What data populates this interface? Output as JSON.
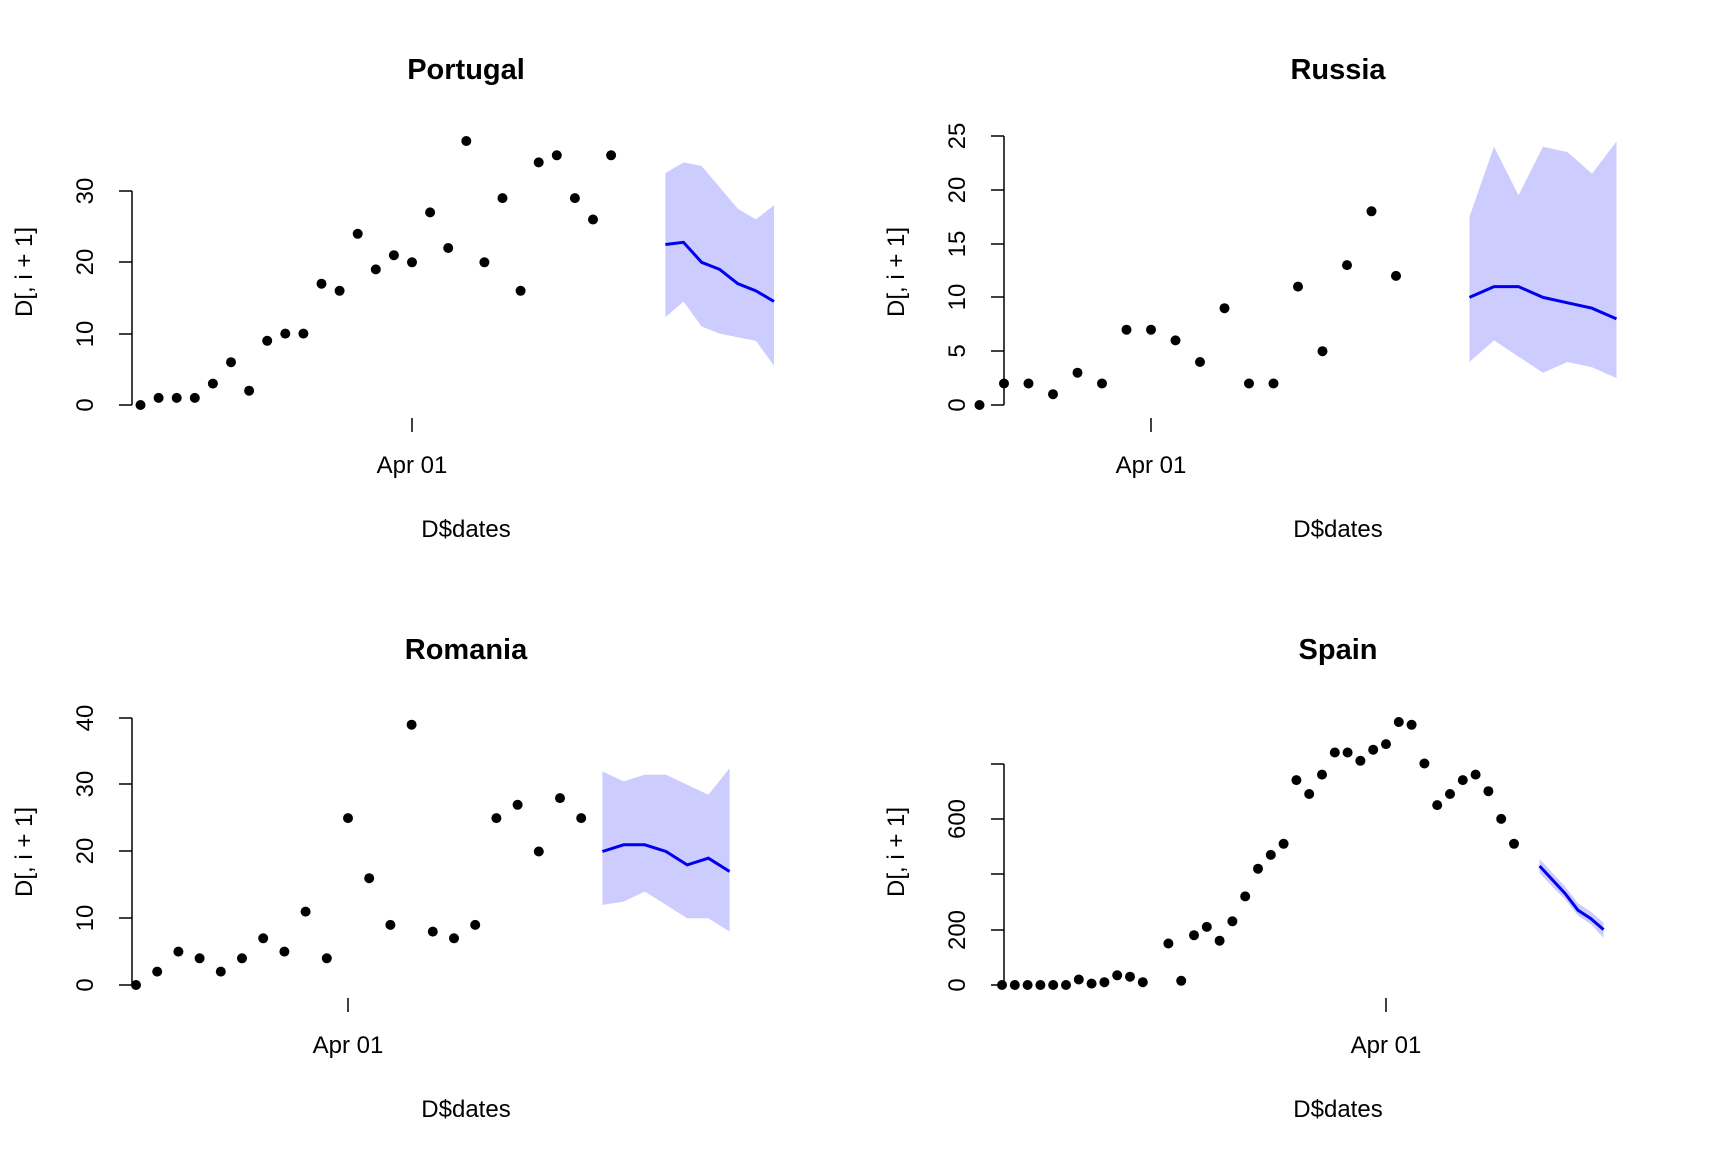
{
  "chart_data": [
    {
      "type": "scatter",
      "title": "Portugal",
      "xlabel": "D$dates",
      "ylabel": "D[, i + 1]",
      "x_tick_labels": [
        "Apr 01"
      ],
      "y_tick_labels": [
        "0",
        "10",
        "20",
        "30"
      ],
      "ylim": [
        0,
        37
      ],
      "x": [
        "2020-03-17",
        "2020-03-18",
        "2020-03-19",
        "2020-03-20",
        "2020-03-21",
        "2020-03-22",
        "2020-03-23",
        "2020-03-24",
        "2020-03-25",
        "2020-03-26",
        "2020-03-27",
        "2020-03-28",
        "2020-03-29",
        "2020-03-30",
        "2020-03-31",
        "2020-04-01",
        "2020-04-02",
        "2020-04-03",
        "2020-04-04",
        "2020-04-05",
        "2020-04-06",
        "2020-04-07",
        "2020-04-08",
        "2020-04-09",
        "2020-04-10",
        "2020-04-11",
        "2020-04-12",
        "2020-04-13",
        "2020-04-14"
      ],
      "y": [
        0,
        1,
        1,
        1,
        3,
        6,
        2,
        9,
        10,
        10,
        17,
        16,
        24,
        19,
        21,
        20,
        27,
        22,
        37,
        20,
        29,
        16,
        34,
        35,
        29,
        26,
        35,
        null,
        null
      ],
      "forecast": {
        "x": [
          "2020-04-15",
          "2020-04-16",
          "2020-04-17",
          "2020-04-18",
          "2020-04-19",
          "2020-04-20",
          "2020-04-21",
          "2020-04-22"
        ],
        "mean": [
          22.5,
          22.8,
          20,
          19,
          17,
          16,
          14.5,
          null
        ],
        "lower": [
          12.3,
          14.5,
          11,
          10,
          9.5,
          9,
          5.5,
          null
        ],
        "upper": [
          32.5,
          34,
          33.5,
          30.5,
          27.5,
          26,
          28,
          null
        ]
      },
      "colors": {
        "points": "#000000",
        "forecast_line": "#0000ee",
        "band": "#ccccff"
      }
    },
    {
      "type": "scatter",
      "title": "Russia",
      "xlabel": "D$dates",
      "ylabel": "D[, i + 1]",
      "x_tick_labels": [
        "Apr 01"
      ],
      "y_tick_labels": [
        "0",
        "5",
        "10",
        "15",
        "20",
        "25"
      ],
      "ylim": [
        0,
        25
      ],
      "x": [
        "2020-03-25",
        "2020-03-26",
        "2020-03-27",
        "2020-03-28",
        "2020-03-29",
        "2020-03-30",
        "2020-03-31",
        "2020-04-01",
        "2020-04-02",
        "2020-04-03",
        "2020-04-04",
        "2020-04-05",
        "2020-04-06",
        "2020-04-07",
        "2020-04-08",
        "2020-04-09",
        "2020-04-10",
        "2020-04-11",
        "2020-04-12",
        "2020-04-13"
      ],
      "y": [
        0,
        2,
        2,
        1,
        3,
        2,
        7,
        7,
        6,
        4,
        9,
        2,
        2,
        11,
        5,
        13,
        18,
        12,
        null,
        null
      ],
      "forecast": {
        "x": [
          "2020-04-14",
          "2020-04-15",
          "2020-04-16",
          "2020-04-17",
          "2020-04-18",
          "2020-04-19",
          "2020-04-20"
        ],
        "mean": [
          10,
          11,
          11,
          10,
          9.5,
          9,
          8
        ],
        "lower": [
          4,
          6,
          4.5,
          3,
          4,
          3.5,
          2.5
        ],
        "upper": [
          17.5,
          24,
          19.5,
          24,
          23.5,
          21.5,
          24.5
        ]
      },
      "colors": {
        "points": "#000000",
        "forecast_line": "#0000ee",
        "band": "#ccccff"
      }
    },
    {
      "type": "scatter",
      "title": "Romania",
      "xlabel": "D$dates",
      "ylabel": "D[, i + 1]",
      "x_tick_labels": [
        "Apr 01"
      ],
      "y_tick_labels": [
        "0",
        "10",
        "20",
        "30",
        "40"
      ],
      "ylim": [
        0,
        40
      ],
      "x": [
        "2020-03-22",
        "2020-03-23",
        "2020-03-24",
        "2020-03-25",
        "2020-03-26",
        "2020-03-27",
        "2020-03-28",
        "2020-03-29",
        "2020-03-30",
        "2020-03-31",
        "2020-04-01",
        "2020-04-02",
        "2020-04-03",
        "2020-04-04",
        "2020-04-05",
        "2020-04-06",
        "2020-04-07",
        "2020-04-08",
        "2020-04-09",
        "2020-04-10",
        "2020-04-11",
        "2020-04-12"
      ],
      "y": [
        0,
        2,
        5,
        4,
        2,
        4,
        7,
        5,
        11,
        4,
        25,
        16,
        9,
        39,
        8,
        7,
        9,
        25,
        27,
        20,
        28,
        25
      ],
      "forecast": {
        "x": [
          "2020-04-13",
          "2020-04-14",
          "2020-04-15",
          "2020-04-16",
          "2020-04-17",
          "2020-04-18",
          "2020-04-19",
          "2020-04-20"
        ],
        "mean": [
          20,
          21,
          21,
          20,
          18,
          19,
          17,
          null
        ],
        "lower": [
          12,
          12.5,
          14,
          12,
          10,
          10,
          8,
          null
        ],
        "upper": [
          32,
          30.5,
          31.5,
          31.5,
          30,
          28.5,
          32.5,
          null
        ]
      },
      "colors": {
        "points": "#000000",
        "forecast_line": "#0000ee",
        "band": "#ccccff"
      }
    },
    {
      "type": "scatter",
      "title": "Spain",
      "xlabel": "D$dates",
      "ylabel": "D[, i + 1]",
      "x_tick_labels": [
        "Apr 01"
      ],
      "y_tick_labels": [
        "0",
        "200",
        "600"
      ],
      "ylim": [
        0,
        950
      ],
      "x": [
        "2020-03-02",
        "2020-03-03",
        "2020-03-04",
        "2020-03-05",
        "2020-03-06",
        "2020-03-07",
        "2020-03-08",
        "2020-03-09",
        "2020-03-10",
        "2020-03-11",
        "2020-03-12",
        "2020-03-13",
        "2020-03-14",
        "2020-03-15",
        "2020-03-16",
        "2020-03-17",
        "2020-03-18",
        "2020-03-19",
        "2020-03-20",
        "2020-03-21",
        "2020-03-22",
        "2020-03-23",
        "2020-03-24",
        "2020-03-25",
        "2020-03-26",
        "2020-03-27",
        "2020-03-28",
        "2020-03-29",
        "2020-03-30",
        "2020-03-31",
        "2020-04-01",
        "2020-04-02",
        "2020-04-03",
        "2020-04-04",
        "2020-04-05",
        "2020-04-06",
        "2020-04-07",
        "2020-04-08",
        "2020-04-09",
        "2020-04-10",
        "2020-04-11",
        "2020-04-12"
      ],
      "y": [
        0,
        0,
        0,
        0,
        0,
        0,
        20,
        5,
        10,
        35,
        30,
        10,
        null,
        150,
        15,
        180,
        210,
        160,
        230,
        320,
        420,
        470,
        510,
        740,
        690,
        760,
        840,
        840,
        810,
        850,
        870,
        950,
        940,
        800,
        650,
        690,
        740,
        760,
        700,
        600,
        510,
        null
      ],
      "forecast": {
        "x": [
          "2020-04-13",
          "2020-04-14",
          "2020-04-15",
          "2020-04-16",
          "2020-04-17",
          "2020-04-18",
          "2020-04-19"
        ],
        "mean": [
          430,
          380,
          330,
          270,
          240,
          200,
          null
        ],
        "lower": [
          405,
          355,
          310,
          250,
          220,
          170,
          null
        ],
        "upper": [
          455,
          405,
          355,
          295,
          265,
          225,
          null
        ]
      },
      "colors": {
        "points": "#000000",
        "forecast_line": "#0000ee",
        "band": "#ccccff"
      }
    }
  ]
}
